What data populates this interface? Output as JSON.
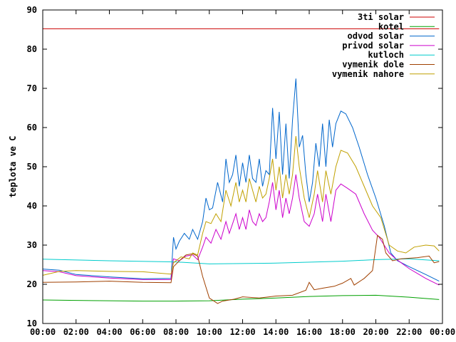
{
  "chart_data": {
    "type": "line",
    "title": "",
    "xlabel": "",
    "ylabel": "teplota ve C",
    "xlim": [
      0,
      24
    ],
    "ylim": [
      10,
      90
    ],
    "x_ticks": [
      0,
      2,
      4,
      6,
      8,
      10,
      12,
      14,
      16,
      18,
      20,
      22,
      24
    ],
    "x_tick_labels": [
      "00:00",
      "02:00",
      "04:00",
      "06:00",
      "08:00",
      "10:00",
      "12:00",
      "14:00",
      "16:00",
      "18:00",
      "20:00",
      "22:00",
      "00:00"
    ],
    "y_ticks": [
      10,
      20,
      30,
      40,
      50,
      60,
      70,
      80,
      90
    ],
    "y_tick_labels": [
      "10",
      "20",
      "30",
      "40",
      "50",
      "60",
      "70",
      "80",
      "90"
    ],
    "grid": false,
    "legend_position": "top-right",
    "series": [
      {
        "name": "3ti solar",
        "color": "#cc0000",
        "points": [
          [
            0,
            85.2
          ],
          [
            23.8,
            85.2
          ]
        ]
      },
      {
        "name": "kotel",
        "color": "#00a000",
        "points": [
          [
            0,
            16
          ],
          [
            2,
            15.9
          ],
          [
            4,
            15.8
          ],
          [
            6,
            15.7
          ],
          [
            8,
            15.7
          ],
          [
            10,
            15.8
          ],
          [
            12,
            16.2
          ],
          [
            14,
            16.5
          ],
          [
            16,
            16.9
          ],
          [
            18,
            17.1
          ],
          [
            20,
            17.2
          ],
          [
            22,
            16.7
          ],
          [
            23.8,
            16.1
          ]
        ]
      },
      {
        "name": "odvod solar",
        "color": "#0066cc",
        "points": [
          [
            0,
            23.9
          ],
          [
            1,
            23.6
          ],
          [
            2,
            22.5
          ],
          [
            4,
            21.9
          ],
          [
            6,
            21.4
          ],
          [
            7.7,
            21.5
          ],
          [
            7.85,
            32
          ],
          [
            8.0,
            29
          ],
          [
            8.2,
            31
          ],
          [
            8.5,
            33
          ],
          [
            8.8,
            31.5
          ],
          [
            9.0,
            34
          ],
          [
            9.3,
            31.5
          ],
          [
            9.6,
            36
          ],
          [
            9.8,
            42
          ],
          [
            10.0,
            39
          ],
          [
            10.2,
            39.5
          ],
          [
            10.5,
            46
          ],
          [
            10.8,
            41
          ],
          [
            11.0,
            52
          ],
          [
            11.2,
            46
          ],
          [
            11.4,
            48
          ],
          [
            11.6,
            53
          ],
          [
            11.8,
            45
          ],
          [
            12.0,
            51
          ],
          [
            12.2,
            46
          ],
          [
            12.4,
            53
          ],
          [
            12.6,
            47
          ],
          [
            12.8,
            46
          ],
          [
            13.0,
            52
          ],
          [
            13.2,
            45
          ],
          [
            13.4,
            49
          ],
          [
            13.6,
            48
          ],
          [
            13.8,
            65
          ],
          [
            14.0,
            52
          ],
          [
            14.2,
            64
          ],
          [
            14.4,
            48
          ],
          [
            14.6,
            61
          ],
          [
            14.8,
            47
          ],
          [
            15.0,
            62
          ],
          [
            15.2,
            72.5
          ],
          [
            15.4,
            55
          ],
          [
            15.6,
            58
          ],
          [
            15.8,
            48
          ],
          [
            16.0,
            41
          ],
          [
            16.2,
            46
          ],
          [
            16.4,
            56
          ],
          [
            16.6,
            50
          ],
          [
            16.8,
            61
          ],
          [
            17.0,
            50
          ],
          [
            17.2,
            62
          ],
          [
            17.4,
            55
          ],
          [
            17.6,
            61
          ],
          [
            17.9,
            64.2
          ],
          [
            18.2,
            63.5
          ],
          [
            18.6,
            60
          ],
          [
            19.0,
            55
          ],
          [
            19.5,
            48
          ],
          [
            20.0,
            42
          ],
          [
            20.5,
            35
          ],
          [
            20.9,
            28
          ],
          [
            21.3,
            26
          ],
          [
            22.0,
            24.5
          ],
          [
            23.0,
            22.5
          ],
          [
            23.8,
            20.8
          ]
        ]
      },
      {
        "name": "privod solar",
        "color": "#cc00cc",
        "points": [
          [
            0,
            23.5
          ],
          [
            1,
            23.2
          ],
          [
            2,
            22.2
          ],
          [
            4,
            21.6
          ],
          [
            6,
            21.2
          ],
          [
            7.7,
            21.2
          ],
          [
            7.85,
            26.5
          ],
          [
            8.2,
            26
          ],
          [
            8.6,
            27.2
          ],
          [
            9.0,
            27.5
          ],
          [
            9.3,
            26.3
          ],
          [
            9.6,
            29.5
          ],
          [
            9.8,
            32
          ],
          [
            10.1,
            30.5
          ],
          [
            10.4,
            34
          ],
          [
            10.7,
            31.5
          ],
          [
            11.0,
            36
          ],
          [
            11.2,
            33
          ],
          [
            11.4,
            35.5
          ],
          [
            11.6,
            38
          ],
          [
            11.8,
            34
          ],
          [
            12.0,
            37
          ],
          [
            12.2,
            34
          ],
          [
            12.4,
            39
          ],
          [
            12.6,
            36
          ],
          [
            12.8,
            35
          ],
          [
            13.0,
            38
          ],
          [
            13.2,
            36
          ],
          [
            13.4,
            37
          ],
          [
            13.6,
            41
          ],
          [
            13.8,
            46
          ],
          [
            14.0,
            39
          ],
          [
            14.2,
            44
          ],
          [
            14.4,
            37
          ],
          [
            14.6,
            42
          ],
          [
            14.8,
            38
          ],
          [
            15.0,
            42
          ],
          [
            15.2,
            48
          ],
          [
            15.4,
            42
          ],
          [
            15.7,
            36
          ],
          [
            16.0,
            34.8
          ],
          [
            16.3,
            38
          ],
          [
            16.5,
            43
          ],
          [
            16.8,
            36
          ],
          [
            17.0,
            43
          ],
          [
            17.3,
            36
          ],
          [
            17.6,
            44
          ],
          [
            17.9,
            45.6
          ],
          [
            18.3,
            44.5
          ],
          [
            18.8,
            43
          ],
          [
            19.3,
            38
          ],
          [
            19.8,
            33.8
          ],
          [
            20.2,
            32
          ],
          [
            20.8,
            28
          ],
          [
            21.2,
            26.5
          ],
          [
            22.0,
            24
          ],
          [
            23.0,
            21.5
          ],
          [
            23.8,
            19.8
          ]
        ]
      },
      {
        "name": "kutloch",
        "color": "#00cccc",
        "points": [
          [
            0,
            26.4
          ],
          [
            4,
            26
          ],
          [
            8,
            25.7
          ],
          [
            10,
            25.2
          ],
          [
            14,
            25.4
          ],
          [
            18,
            25.9
          ],
          [
            20,
            26.3
          ],
          [
            22,
            26.5
          ],
          [
            23.8,
            26
          ]
        ]
      },
      {
        "name": "vymenik dole",
        "color": "#a04000",
        "points": [
          [
            0,
            20.5
          ],
          [
            2,
            20.6
          ],
          [
            4,
            20.8
          ],
          [
            6,
            20.5
          ],
          [
            7.7,
            20.4
          ],
          [
            7.85,
            24.5
          ],
          [
            8.2,
            26
          ],
          [
            8.6,
            27.5
          ],
          [
            9.0,
            27.8
          ],
          [
            9.3,
            27.2
          ],
          [
            9.6,
            22
          ],
          [
            10.0,
            16.5
          ],
          [
            10.5,
            15.1
          ],
          [
            10.8,
            15.7
          ],
          [
            11.5,
            16.2
          ],
          [
            12.0,
            16.8
          ],
          [
            13.0,
            16.5
          ],
          [
            14.0,
            17
          ],
          [
            15.0,
            17.2
          ],
          [
            15.8,
            18.5
          ],
          [
            16.0,
            20.5
          ],
          [
            16.3,
            18.6
          ],
          [
            16.8,
            19
          ],
          [
            17.5,
            19.5
          ],
          [
            18.0,
            20.3
          ],
          [
            18.5,
            21.5
          ],
          [
            18.7,
            19.8
          ],
          [
            19.3,
            21.5
          ],
          [
            19.8,
            23.5
          ],
          [
            20.1,
            32.5
          ],
          [
            20.4,
            31.5
          ],
          [
            20.6,
            28
          ],
          [
            21.0,
            26
          ],
          [
            21.5,
            26.5
          ],
          [
            22.5,
            26.8
          ],
          [
            23.2,
            27.2
          ],
          [
            23.5,
            25.5
          ],
          [
            23.8,
            25.8
          ]
        ]
      },
      {
        "name": "vymenik nahore",
        "color": "#c0a000",
        "points": [
          [
            0,
            22.3
          ],
          [
            1,
            23.3
          ],
          [
            2,
            23.5
          ],
          [
            4,
            23.3
          ],
          [
            6,
            23.2
          ],
          [
            7.7,
            22.6
          ],
          [
            7.85,
            25.5
          ],
          [
            8.3,
            27
          ],
          [
            8.8,
            26.5
          ],
          [
            9.0,
            28
          ],
          [
            9.3,
            27.5
          ],
          [
            9.6,
            33
          ],
          [
            9.8,
            36
          ],
          [
            10.1,
            35.5
          ],
          [
            10.4,
            38
          ],
          [
            10.7,
            36
          ],
          [
            11.0,
            44
          ],
          [
            11.3,
            40
          ],
          [
            11.6,
            46
          ],
          [
            11.8,
            41
          ],
          [
            12.0,
            44
          ],
          [
            12.2,
            41
          ],
          [
            12.4,
            47
          ],
          [
            12.6,
            44
          ],
          [
            12.8,
            41
          ],
          [
            13.0,
            45
          ],
          [
            13.2,
            42
          ],
          [
            13.4,
            43
          ],
          [
            13.6,
            47
          ],
          [
            13.8,
            52
          ],
          [
            14.0,
            44
          ],
          [
            14.2,
            50
          ],
          [
            14.4,
            42
          ],
          [
            14.6,
            48
          ],
          [
            14.8,
            43
          ],
          [
            15.0,
            48
          ],
          [
            15.2,
            57.8
          ],
          [
            15.4,
            50
          ],
          [
            15.7,
            42
          ],
          [
            16.0,
            37
          ],
          [
            16.3,
            43
          ],
          [
            16.5,
            49
          ],
          [
            16.8,
            41
          ],
          [
            17.0,
            49
          ],
          [
            17.3,
            43
          ],
          [
            17.6,
            50
          ],
          [
            17.9,
            54.2
          ],
          [
            18.3,
            53.5
          ],
          [
            18.8,
            50
          ],
          [
            19.3,
            45
          ],
          [
            19.8,
            40
          ],
          [
            20.3,
            37
          ],
          [
            20.8,
            30
          ],
          [
            21.3,
            28.5
          ],
          [
            21.8,
            28
          ],
          [
            22.3,
            29.5
          ],
          [
            23.0,
            30
          ],
          [
            23.5,
            29.8
          ],
          [
            23.8,
            28.5
          ]
        ]
      }
    ]
  }
}
